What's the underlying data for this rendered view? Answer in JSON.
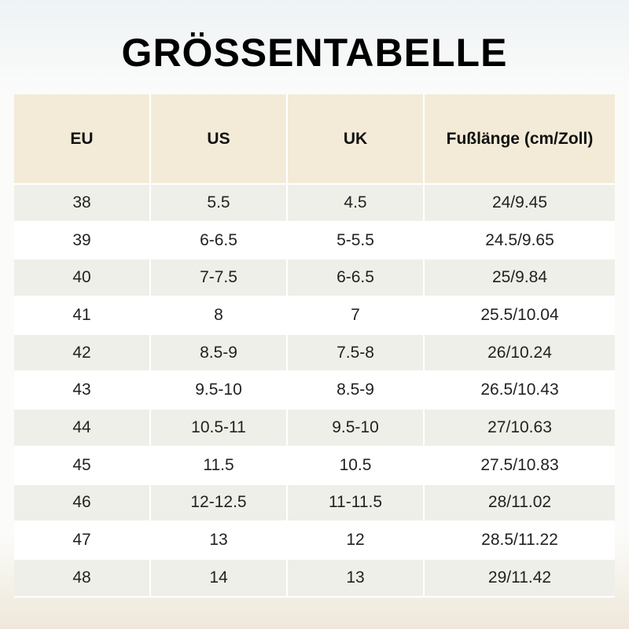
{
  "header": {
    "title": "GRÖSSENTABELLE"
  },
  "table": {
    "columns": [
      "EU",
      "US",
      "UK",
      "Fußlänge (cm/Zoll)"
    ],
    "rows": [
      [
        "38",
        "5.5",
        "4.5",
        "24/9.45"
      ],
      [
        "39",
        "6-6.5",
        "5-5.5",
        "24.5/9.65"
      ],
      [
        "40",
        "7-7.5",
        "6-6.5",
        "25/9.84"
      ],
      [
        "41",
        "8",
        "7",
        "25.5/10.04"
      ],
      [
        "42",
        "8.5-9",
        "7.5-8",
        "26/10.24"
      ],
      [
        "43",
        "9.5-10",
        "8.5-9",
        "26.5/10.43"
      ],
      [
        "44",
        "10.5-11",
        "9.5-10",
        "27/10.63"
      ],
      [
        "45",
        "11.5",
        "10.5",
        "27.5/10.83"
      ],
      [
        "46",
        "12-12.5",
        "11-11.5",
        "28/11.02"
      ],
      [
        "47",
        "13",
        "12",
        "28.5/11.22"
      ],
      [
        "48",
        "14",
        "13",
        "29/11.42"
      ]
    ]
  }
}
